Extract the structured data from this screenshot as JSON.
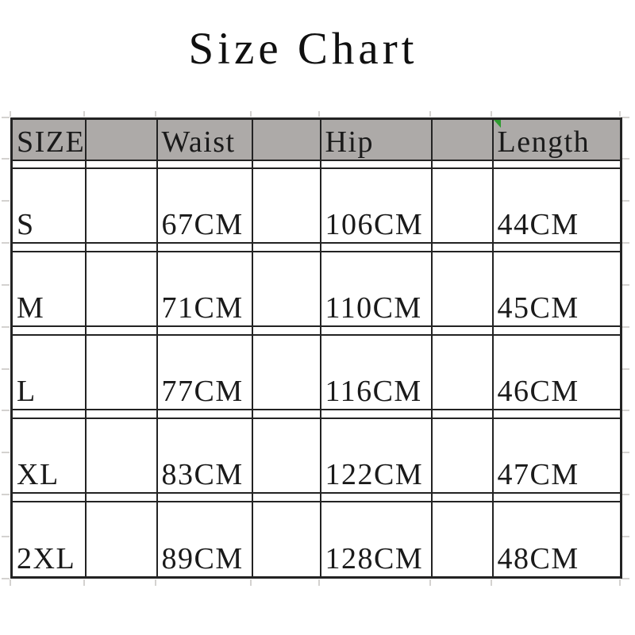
{
  "header": {
    "title": "Size Chart"
  },
  "table": {
    "header_row": [
      "SIZE",
      "",
      "Waist",
      "",
      "Hip",
      "",
      "Length"
    ],
    "rows": [
      [
        "",
        "",
        "",
        "",
        "",
        "",
        ""
      ],
      [
        "S",
        "",
        "67CM",
        "",
        "106CM",
        "",
        "44CM"
      ],
      [
        "",
        "",
        "",
        "",
        "",
        "",
        ""
      ],
      [
        "M",
        "",
        "71CM",
        "",
        "110CM",
        "",
        "45CM"
      ],
      [
        "",
        "",
        "",
        "",
        "",
        "",
        ""
      ],
      [
        "L",
        "",
        "77CM",
        "",
        "116CM",
        "",
        "46CM"
      ],
      [
        "",
        "",
        "",
        "",
        "",
        "",
        ""
      ],
      [
        "XL",
        "",
        "83CM",
        "",
        "122CM",
        "",
        "47CM"
      ],
      [
        "",
        "",
        "",
        "",
        "",
        "",
        ""
      ],
      [
        "2XL",
        "",
        "89CM",
        "",
        "128CM",
        "",
        "48CM"
      ]
    ]
  },
  "indicator": {
    "name": "excel-error-corner-triangle",
    "location": "Length header cell top-left"
  },
  "colors": {
    "header_bg": "#adaaa8",
    "border": "#232323",
    "error_indicator_green": "#2f9b31",
    "text": "#1a1a1a",
    "background": "#ffffff"
  },
  "chart_data": {
    "type": "table",
    "title": "Size Chart",
    "columns": [
      "SIZE",
      "Waist",
      "Hip",
      "Length"
    ],
    "categories": [
      "S",
      "M",
      "L",
      "XL",
      "2XL"
    ],
    "rows": [
      [
        "S",
        "67CM",
        "106CM",
        "44CM"
      ],
      [
        "M",
        "71CM",
        "110CM",
        "45CM"
      ],
      [
        "L",
        "77CM",
        "116CM",
        "46CM"
      ],
      [
        "XL",
        "83CM",
        "122CM",
        "47CM"
      ],
      [
        "2XL",
        "89CM",
        "128CM",
        "48CM"
      ]
    ],
    "series": [
      {
        "name": "Waist",
        "unit": "CM",
        "values": [
          67,
          71,
          77,
          83,
          89
        ]
      },
      {
        "name": "Hip",
        "unit": "CM",
        "values": [
          106,
          110,
          116,
          122,
          128
        ]
      },
      {
        "name": "Length",
        "unit": "CM",
        "values": [
          44,
          45,
          46,
          47,
          48
        ]
      }
    ],
    "layout_hints": {
      "header_fill": "gray",
      "spacer_columns_between_fields": true,
      "spacer_rows_between_sizes": true,
      "grid": "on"
    }
  }
}
